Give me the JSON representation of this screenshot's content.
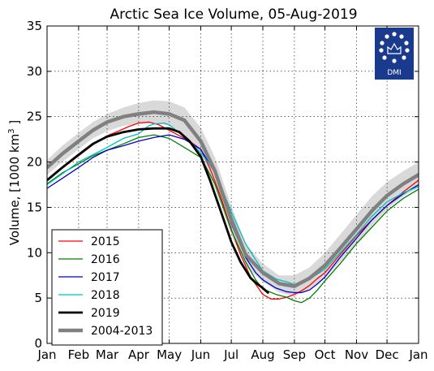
{
  "chart_data": {
    "type": "line",
    "title": "Arctic Sea Ice Volume, 05-Aug-2019",
    "ylabel": "Volume, [1000 km",
    "ylabel_sup": "3",
    "ylabel_tail": " ]",
    "xlabel": "",
    "ylim": [
      0,
      35
    ],
    "yticks": [
      0,
      5,
      10,
      15,
      20,
      25,
      30,
      35
    ],
    "xlim": [
      0,
      365
    ],
    "xtick_positions": [
      0,
      31,
      59,
      90,
      120,
      151,
      181,
      212,
      243,
      273,
      304,
      334,
      365
    ],
    "xtick_labels": [
      "Jan",
      "Feb",
      "Mar",
      "Apr",
      "May",
      "Jun",
      "Jul",
      "Aug",
      "Sep",
      "Oct",
      "Nov",
      "Dec",
      "Jan"
    ],
    "grid": true,
    "legend_position": "bottom-left",
    "logo_text": "DMI",
    "band": {
      "name": "2004-2013 spread",
      "color": "#d9d9d9",
      "x": [
        0,
        15,
        31,
        45,
        59,
        75,
        90,
        105,
        120,
        135,
        151,
        165,
        181,
        195,
        212,
        228,
        243,
        258,
        273,
        288,
        304,
        319,
        334,
        350,
        365
      ],
      "upper": [
        20.2,
        21.8,
        23.2,
        24.4,
        25.3,
        26.0,
        26.5,
        26.8,
        26.7,
        26.0,
        23.8,
        20.5,
        15.2,
        11.0,
        8.8,
        7.5,
        7.5,
        8.4,
        10.0,
        12.0,
        14.2,
        16.2,
        17.8,
        19.0,
        20.0
      ],
      "lower": [
        18.6,
        20.0,
        21.4,
        22.6,
        23.4,
        24.0,
        24.2,
        24.3,
        24.0,
        23.0,
        20.5,
        17.0,
        12.0,
        8.5,
        6.8,
        5.6,
        5.2,
        6.0,
        7.2,
        9.0,
        11.0,
        13.0,
        14.8,
        16.2,
        17.2
      ]
    },
    "series": [
      {
        "name": "2015",
        "color": "#ff0000",
        "width": 1.3,
        "x": [
          0,
          15,
          31,
          45,
          59,
          70,
          80,
          90,
          100,
          110,
          120,
          130,
          140,
          151,
          160,
          170,
          181,
          190,
          200,
          212,
          220,
          228,
          236,
          243,
          250,
          258,
          265,
          273,
          288,
          304,
          319,
          334,
          350,
          365
        ],
        "values": [
          17.9,
          19.3,
          20.7,
          21.9,
          22.9,
          23.4,
          23.9,
          24.3,
          24.4,
          24.1,
          23.5,
          22.9,
          22.3,
          21.4,
          19.3,
          16.4,
          12.6,
          9.8,
          7.3,
          5.4,
          4.9,
          4.9,
          5.1,
          5.4,
          5.8,
          6.4,
          7.1,
          7.8,
          9.8,
          11.9,
          13.6,
          15.2,
          16.7,
          18.0
        ]
      },
      {
        "name": "2016",
        "color": "#008000",
        "width": 1.3,
        "x": [
          0,
          15,
          31,
          45,
          59,
          75,
          90,
          105,
          120,
          135,
          151,
          165,
          181,
          195,
          205,
          212,
          225,
          235,
          243,
          250,
          258,
          265,
          273,
          288,
          304,
          319,
          334,
          350,
          365
        ],
        "values": [
          17.6,
          18.8,
          19.8,
          20.7,
          21.3,
          22.0,
          22.7,
          23.0,
          22.6,
          21.6,
          20.5,
          17.6,
          12.5,
          9.0,
          7.0,
          6.0,
          5.4,
          5.1,
          4.7,
          4.5,
          5.0,
          5.8,
          6.9,
          8.8,
          11.0,
          12.8,
          14.6,
          16.0,
          17.0
        ]
      },
      {
        "name": "2017",
        "color": "#0000cd",
        "width": 1.3,
        "x": [
          0,
          15,
          31,
          45,
          59,
          75,
          90,
          105,
          120,
          135,
          151,
          165,
          181,
          195,
          205,
          212,
          225,
          235,
          243,
          250,
          258,
          265,
          273,
          288,
          304,
          319,
          334,
          350,
          365
        ],
        "values": [
          17.1,
          18.2,
          19.4,
          20.5,
          21.3,
          21.8,
          22.3,
          22.7,
          23.0,
          22.5,
          21.4,
          18.8,
          13.2,
          9.5,
          7.8,
          7.0,
          6.1,
          5.7,
          5.6,
          5.6,
          5.9,
          6.5,
          7.3,
          9.5,
          11.6,
          13.6,
          15.2,
          16.5,
          17.5
        ]
      },
      {
        "name": "2018",
        "color": "#00bfbf",
        "width": 1.3,
        "x": [
          0,
          15,
          31,
          45,
          59,
          75,
          90,
          100,
          105,
          115,
          120,
          130,
          140,
          151,
          165,
          181,
          195,
          205,
          212,
          225,
          235,
          243,
          250,
          258,
          265,
          273,
          288,
          304,
          319,
          334,
          350,
          365
        ],
        "values": [
          17.5,
          18.7,
          20.0,
          20.8,
          21.6,
          22.6,
          23.1,
          24.0,
          24.2,
          24.3,
          24.1,
          23.2,
          22.3,
          21.0,
          19.0,
          14.5,
          11.0,
          9.2,
          8.0,
          7.1,
          6.8,
          6.5,
          6.8,
          7.1,
          7.6,
          8.2,
          10.0,
          12.0,
          14.0,
          15.6,
          16.6,
          17.3
        ]
      },
      {
        "name": "2019",
        "color": "#000000",
        "width": 2.8,
        "x": [
          0,
          15,
          31,
          45,
          59,
          75,
          90,
          105,
          120,
          130,
          140,
          151,
          160,
          170,
          181,
          190,
          200,
          205,
          212,
          217
        ],
        "values": [
          18.0,
          19.4,
          20.8,
          22.0,
          22.8,
          23.3,
          23.6,
          23.7,
          23.7,
          23.3,
          22.3,
          20.6,
          18.0,
          14.8,
          11.2,
          9.0,
          7.2,
          6.7,
          6.1,
          5.6
        ]
      },
      {
        "name": "2004-2013",
        "color": "#808080",
        "width": 4.5,
        "x": [
          0,
          15,
          31,
          45,
          59,
          75,
          90,
          105,
          120,
          135,
          151,
          165,
          181,
          195,
          212,
          228,
          243,
          258,
          273,
          288,
          304,
          319,
          334,
          350,
          365
        ],
        "values": [
          19.4,
          20.9,
          22.3,
          23.5,
          24.4,
          25.0,
          25.3,
          25.5,
          25.3,
          24.6,
          22.3,
          19.0,
          13.7,
          9.8,
          7.8,
          6.6,
          6.3,
          7.2,
          8.6,
          10.5,
          12.6,
          14.6,
          16.3,
          17.6,
          18.6
        ]
      }
    ]
  }
}
